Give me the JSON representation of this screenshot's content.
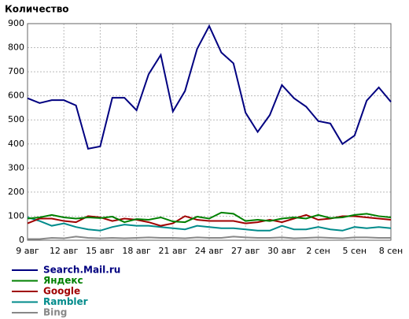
{
  "chart_data": {
    "type": "line",
    "title": "Количество",
    "categories": [
      "9 авг",
      null,
      null,
      "12 авг",
      null,
      null,
      "15 авг",
      null,
      null,
      "18 авг",
      null,
      null,
      "21 авг",
      null,
      null,
      "24 авг",
      null,
      null,
      "27 авг",
      null,
      null,
      "30 авг",
      null,
      null,
      "2 сен",
      null,
      null,
      "5 сен",
      null,
      null,
      "8 сен"
    ],
    "ylim": [
      0,
      900
    ],
    "yticks": [
      0,
      100,
      200,
      300,
      400,
      500,
      600,
      700,
      800,
      900
    ],
    "grid": true,
    "series": [
      {
        "name": "Search.Mail.ru",
        "color": "#000080",
        "values": [
          590,
          570,
          582,
          582,
          560,
          380,
          390,
          592,
          592,
          540,
          690,
          770,
          535,
          620,
          795,
          890,
          780,
          735,
          530,
          450,
          520,
          645,
          590,
          555,
          495,
          485,
          400,
          435,
          580,
          635,
          575
        ]
      },
      {
        "name": "Яндекс",
        "color": "#008000",
        "values": [
          90,
          95,
          105,
          95,
          90,
          95,
          92,
          98,
          75,
          88,
          85,
          95,
          78,
          75,
          98,
          90,
          115,
          110,
          80,
          85,
          80,
          90,
          95,
          90,
          105,
          92,
          95,
          105,
          110,
          100,
          95
        ]
      },
      {
        "name": "Google",
        "color": "#a00000",
        "values": [
          70,
          90,
          90,
          80,
          75,
          100,
          95,
          80,
          90,
          85,
          75,
          60,
          70,
          100,
          85,
          80,
          80,
          80,
          70,
          75,
          85,
          75,
          90,
          105,
          85,
          90,
          100,
          100,
          95,
          90,
          85
        ]
      },
      {
        "name": "Rambler",
        "color": "#008b8b",
        "values": [
          95,
          80,
          60,
          70,
          55,
          45,
          40,
          55,
          65,
          60,
          60,
          55,
          50,
          45,
          60,
          55,
          50,
          50,
          45,
          40,
          40,
          60,
          45,
          45,
          55,
          45,
          40,
          55,
          50,
          55,
          50
        ]
      },
      {
        "name": "Bing",
        "color": "#888888",
        "values": [
          5,
          5,
          10,
          8,
          15,
          10,
          8,
          10,
          8,
          10,
          12,
          10,
          10,
          8,
          12,
          10,
          10,
          15,
          12,
          10,
          10,
          12,
          8,
          10,
          12,
          10,
          8,
          12,
          12,
          10,
          10
        ]
      }
    ]
  }
}
